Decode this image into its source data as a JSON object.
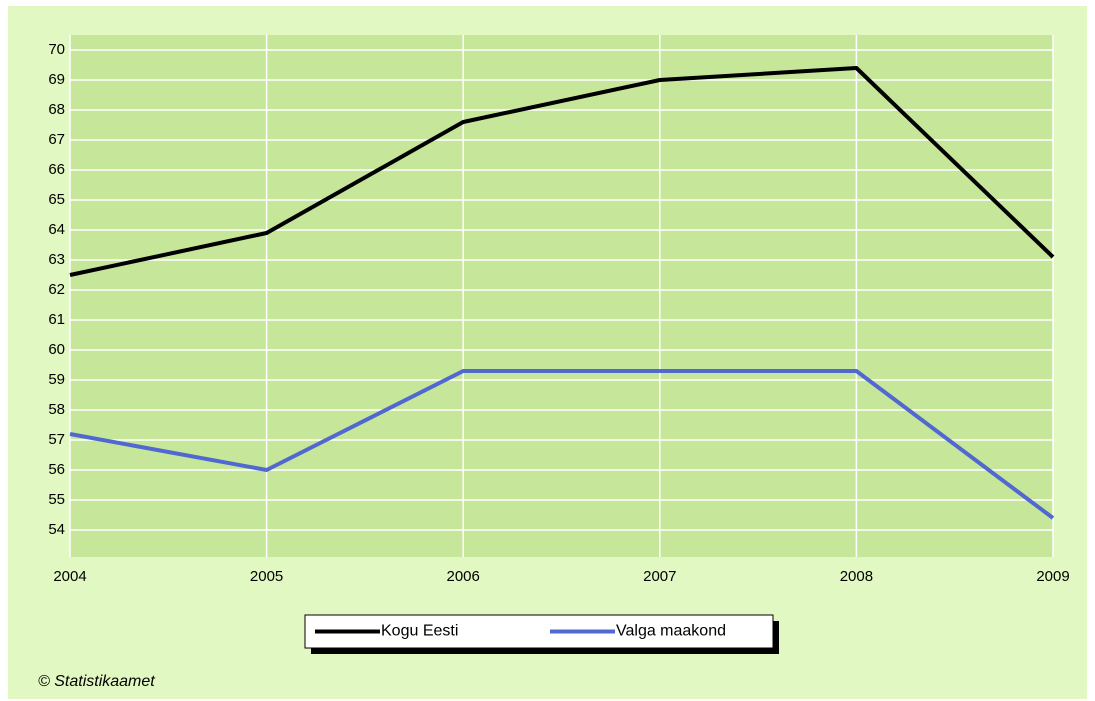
{
  "chart_data": {
    "type": "line",
    "x": [
      2004,
      2005,
      2006,
      2007,
      2008,
      2009
    ],
    "xlim": [
      2004,
      2009
    ],
    "xticks": [
      2004,
      2005,
      2006,
      2007,
      2008,
      2009
    ],
    "ylim": [
      53.1,
      70.5
    ],
    "yticks": [
      54,
      55,
      56,
      57,
      58,
      59,
      60,
      61,
      62,
      63,
      64,
      65,
      66,
      67,
      68,
      69,
      70
    ],
    "grid": true,
    "series": [
      {
        "name": "Kogu Eesti",
        "color": "#000000",
        "values": [
          62.5,
          63.9,
          67.6,
          69.0,
          69.4,
          63.1
        ]
      },
      {
        "name": "Valga maakond",
        "color": "#5068d0",
        "values": [
          57.2,
          56.0,
          59.3,
          59.3,
          59.3,
          54.4
        ]
      }
    ],
    "legend": "bottom",
    "source": "© Statistikaamet"
  }
}
